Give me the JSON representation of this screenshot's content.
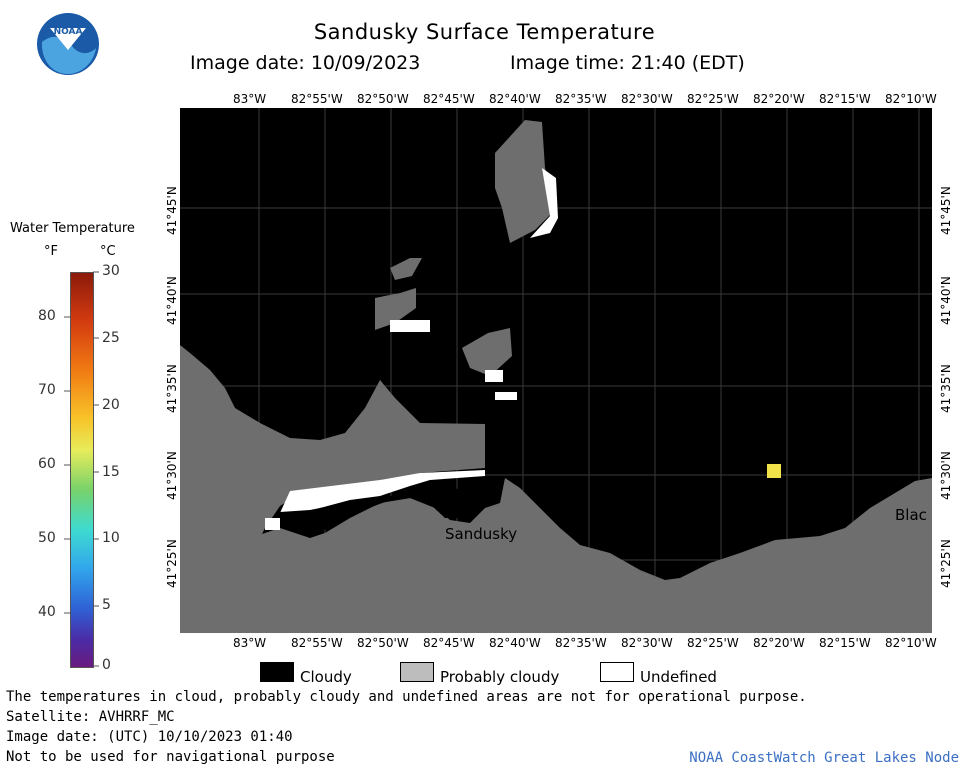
{
  "header": {
    "title": "Sandusky Surface Temperature",
    "image_date": "Image date: 10/09/2023",
    "image_time": "Image time: 21:40 (EDT)",
    "logo_text": "NOAA"
  },
  "map": {
    "lon_labels": [
      "83°W",
      "82°55'W",
      "82°50'W",
      "82°45'W",
      "82°40'W",
      "82°35'W",
      "82°30'W",
      "82°25'W",
      "82°20'W",
      "82°15'W",
      "82°10'W"
    ],
    "lat_labels": [
      "41°45'N",
      "41°40'N",
      "41°35'N",
      "41°30'N",
      "41°25'N"
    ],
    "places": [
      "Sandusky",
      "Blac"
    ],
    "colors": {
      "cloudy": "#000000",
      "probably_cloudy": "#6e6e6e",
      "undefined": "#ffffff",
      "warm_pixel": "#f2e24a"
    }
  },
  "legend": {
    "title": "Water Temperature",
    "unit_f": "°F",
    "unit_c": "°C",
    "f_ticks": [
      "80",
      "70",
      "60",
      "50",
      "40"
    ],
    "c_ticks": [
      "30",
      "25",
      "20",
      "15",
      "10",
      "5",
      "0"
    ]
  },
  "key": {
    "cloudy": "Cloudy",
    "probably_cloudy": "Probably cloudy",
    "undefined": "Undefined"
  },
  "footer": {
    "note": "The temperatures in cloud, probably cloudy and undefined areas are not for operational purpose.",
    "satellite": "Satellite: AVHRRF_MC",
    "utc_date": "Image date: (UTC) 10/10/2023  01:40",
    "nav_warning": "Not to be used for navigational purpose",
    "credit": "NOAA CoastWatch Great Lakes Node"
  }
}
